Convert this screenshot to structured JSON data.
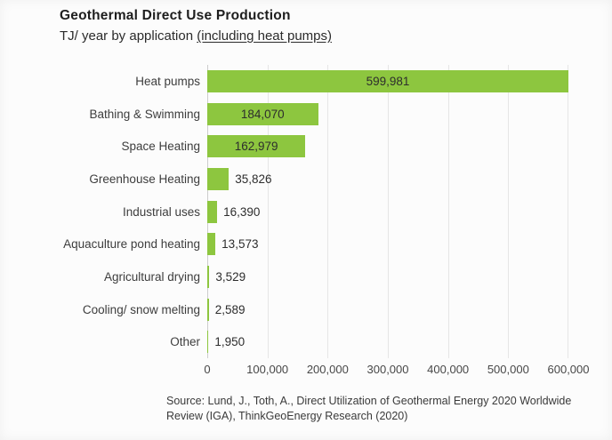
{
  "header": {
    "title": "Geothermal Direct Use Production",
    "subtitle_prefix": "TJ/ year by application ",
    "subtitle_underlined": "(including heat pumps)"
  },
  "chart_data": {
    "type": "bar",
    "orientation": "horizontal",
    "title": "Geothermal Direct Use Production",
    "subtitle": "TJ/ year by application (including heat pumps)",
    "categories": [
      "Heat pumps",
      "Bathing & Swimming",
      "Space Heating",
      "Greenhouse Heating",
      "Industrial uses",
      "Aquaculture pond heating",
      "Agricultural drying",
      "Cooling/ snow melting",
      "Other"
    ],
    "values": [
      599981,
      184070,
      162979,
      35826,
      16390,
      13573,
      3529,
      2589,
      1950
    ],
    "value_labels": [
      "599,981",
      "184,070",
      "162,979",
      "35,826",
      "16,390",
      "13,573",
      "3,529",
      "2,589",
      "1,950"
    ],
    "xlim": [
      0,
      600000
    ],
    "x_ticks": [
      0,
      100000,
      200000,
      300000,
      400000,
      500000,
      600000
    ],
    "x_tick_labels": [
      "0",
      "100,000",
      "200,000",
      "300,000",
      "400,000",
      "500,000",
      "600,000"
    ],
    "grid": "vertical",
    "legend": "none",
    "bar_color": "#8dc63f",
    "inside_label_threshold": 100000
  },
  "source": {
    "line1": "Source: Lund, J., Toth, A., Direct Utilization of Geothermal Energy 2020 Worldwide",
    "line2": "Review (IGA), ThinkGeoEnergy Research (2020)"
  }
}
